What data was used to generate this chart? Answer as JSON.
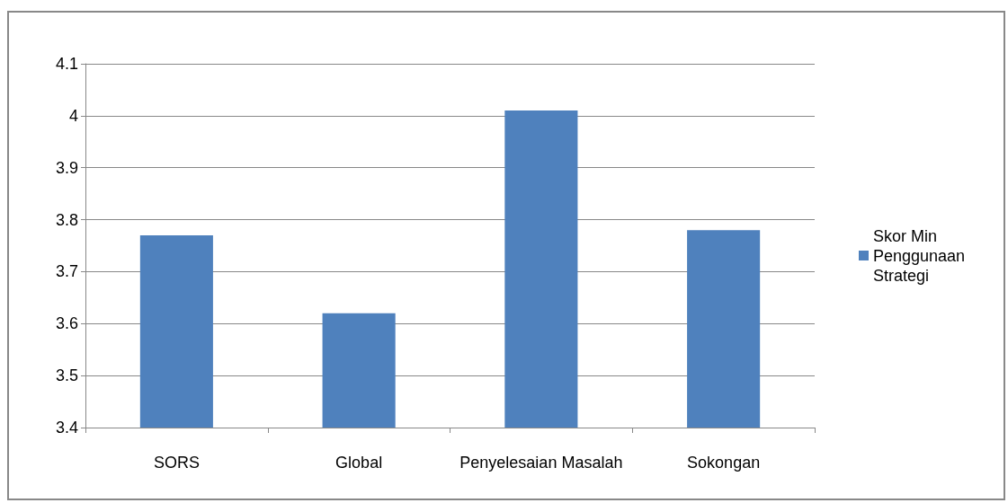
{
  "chart_data": {
    "type": "bar",
    "categories": [
      "SORS",
      "Global",
      "Penyelesaian Masalah",
      "Sokongan"
    ],
    "series": [
      {
        "name": "Skor Min Penggunaan Strategi",
        "color": "#4f81bd",
        "values": [
          3.77,
          3.62,
          4.01,
          3.78
        ]
      }
    ],
    "ylim": [
      3.4,
      4.1
    ],
    "yticks": [
      3.4,
      3.5,
      3.6,
      3.7,
      3.8,
      3.9,
      4,
      4.1
    ],
    "grid": "y",
    "legend": "right"
  }
}
